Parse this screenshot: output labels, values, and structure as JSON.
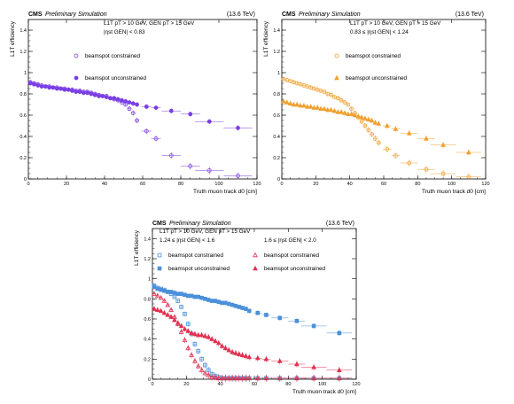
{
  "chart_data": [
    {
      "type": "scatter",
      "cms_label": "CMS",
      "header_italic": "Preliminary Simulation",
      "energy": "(13.6 TeV)",
      "xlabel": "Truth muon track d0 [cm]",
      "ylabel": "L1T efficiency",
      "xlim": [
        0,
        120
      ],
      "ylim": [
        0,
        1.5
      ],
      "x_ticks": [
        "0",
        "20",
        "40",
        "60",
        "80",
        "100",
        "120"
      ],
      "y_ticks": [
        "0",
        "0.2",
        "0.4",
        "0.6",
        "0.8",
        "1",
        "1.2",
        "1.4"
      ],
      "annotations": [
        "L1T pT > 10 GeV, GEN pT > 15 GeV",
        "|ηst GEN| < 0.83"
      ],
      "series": [
        {
          "name": "beamspot constrained",
          "color": "#7b3fe4",
          "marker": "open-circle",
          "x": [
            1,
            3,
            5,
            7,
            9,
            11,
            13,
            15,
            17,
            19,
            21,
            23,
            25,
            27,
            29,
            31,
            33,
            35,
            37,
            39,
            41,
            43,
            45,
            47,
            49,
            51,
            53,
            55,
            57,
            62,
            67,
            75,
            85,
            95,
            110
          ],
          "y": [
            0.91,
            0.9,
            0.89,
            0.88,
            0.87,
            0.87,
            0.86,
            0.86,
            0.85,
            0.85,
            0.84,
            0.84,
            0.83,
            0.83,
            0.82,
            0.82,
            0.81,
            0.8,
            0.79,
            0.78,
            0.78,
            0.76,
            0.75,
            0.74,
            0.72,
            0.7,
            0.66,
            0.62,
            0.55,
            0.45,
            0.38,
            0.22,
            0.12,
            0.08,
            0.03
          ]
        },
        {
          "name": "beamspot unconstrained",
          "color": "#7b3fe4",
          "marker": "filled-circle",
          "x": [
            1,
            3,
            5,
            7,
            9,
            11,
            13,
            15,
            17,
            19,
            21,
            23,
            25,
            27,
            29,
            31,
            33,
            35,
            37,
            39,
            41,
            43,
            45,
            47,
            49,
            51,
            53,
            55,
            57,
            62,
            67,
            75,
            85,
            95,
            110
          ],
          "y": [
            0.9,
            0.89,
            0.88,
            0.87,
            0.87,
            0.86,
            0.86,
            0.85,
            0.85,
            0.84,
            0.84,
            0.83,
            0.82,
            0.82,
            0.81,
            0.81,
            0.8,
            0.79,
            0.78,
            0.78,
            0.77,
            0.76,
            0.76,
            0.75,
            0.74,
            0.73,
            0.72,
            0.71,
            0.7,
            0.68,
            0.67,
            0.64,
            0.61,
            0.54,
            0.48
          ]
        }
      ]
    },
    {
      "type": "scatter",
      "cms_label": "CMS",
      "header_italic": "Preliminary Simulation",
      "energy": "(13.6 TeV)",
      "xlabel": "Truth muon track d0 [cm]",
      "ylabel": "L1T efficiency",
      "xlim": [
        0,
        120
      ],
      "ylim": [
        0,
        1.5
      ],
      "x_ticks": [
        "0",
        "20",
        "40",
        "60",
        "80",
        "100",
        "120"
      ],
      "y_ticks": [
        "0",
        "0.2",
        "0.4",
        "0.6",
        "0.8",
        "1",
        "1.2",
        "1.4"
      ],
      "annotations": [
        "L1T pT > 10 GeV, GEN pT > 15 GeV",
        "0.83 ≤ |ηst GEN| < 1.24"
      ],
      "series": [
        {
          "name": "beamspot constrained",
          "color": "#f0a030",
          "marker": "open-circle",
          "x": [
            1,
            3,
            5,
            7,
            9,
            11,
            13,
            15,
            17,
            19,
            21,
            23,
            25,
            27,
            29,
            31,
            33,
            35,
            37,
            39,
            41,
            43,
            45,
            47,
            49,
            51,
            53,
            55,
            57,
            62,
            67,
            75,
            85,
            95,
            110
          ],
          "y": [
            0.94,
            0.93,
            0.92,
            0.91,
            0.9,
            0.89,
            0.88,
            0.87,
            0.86,
            0.85,
            0.84,
            0.83,
            0.82,
            0.8,
            0.79,
            0.77,
            0.76,
            0.74,
            0.72,
            0.7,
            0.66,
            0.62,
            0.58,
            0.54,
            0.5,
            0.46,
            0.42,
            0.38,
            0.34,
            0.28,
            0.22,
            0.15,
            0.09,
            0.05,
            0.02
          ]
        },
        {
          "name": "beamspot unconstrained",
          "color": "#f0a030",
          "marker": "filled-triangle",
          "x": [
            1,
            3,
            5,
            7,
            9,
            11,
            13,
            15,
            17,
            19,
            21,
            23,
            25,
            27,
            29,
            31,
            33,
            35,
            37,
            39,
            41,
            43,
            45,
            47,
            49,
            51,
            53,
            55,
            57,
            62,
            67,
            75,
            85,
            95,
            110
          ],
          "y": [
            0.73,
            0.72,
            0.71,
            0.7,
            0.7,
            0.69,
            0.69,
            0.68,
            0.68,
            0.67,
            0.67,
            0.66,
            0.66,
            0.65,
            0.65,
            0.64,
            0.63,
            0.63,
            0.62,
            0.61,
            0.61,
            0.6,
            0.59,
            0.58,
            0.57,
            0.56,
            0.55,
            0.53,
            0.52,
            0.5,
            0.47,
            0.43,
            0.38,
            0.32,
            0.25
          ]
        }
      ]
    },
    {
      "type": "scatter",
      "cms_label": "CMS",
      "header_italic": "Preliminary Simulation",
      "energy": "(13.6 TeV)",
      "xlabel": "Truth muon track d0 [cm]",
      "ylabel": "L1T efficiency",
      "xlim": [
        0,
        120
      ],
      "ylim": [
        0,
        1.5
      ],
      "x_ticks": [
        "0",
        "20",
        "40",
        "60",
        "80",
        "100",
        "120"
      ],
      "y_ticks": [
        "0",
        "0.2",
        "0.4",
        "0.6",
        "0.8",
        "1",
        "1.2",
        "1.4"
      ],
      "annotations": [
        "L1T pT > 10 GeV, GEN pT > 15 GeV",
        "1.24 ≤ |ηst GEN| < 1.6",
        "1.6 ≤ |ηst GEN| < 2.0"
      ],
      "series": [
        {
          "name": "beamspot constrained",
          "color": "#4a90d9",
          "marker": "open-square",
          "x": [
            1,
            3,
            5,
            7,
            9,
            11,
            13,
            15,
            17,
            19,
            21,
            23,
            25,
            27,
            29,
            31,
            33,
            35,
            37,
            39,
            41,
            43,
            45,
            47,
            49,
            51,
            53,
            55,
            57,
            62,
            67,
            75,
            85,
            95,
            110
          ],
          "y": [
            0.93,
            0.91,
            0.9,
            0.89,
            0.87,
            0.85,
            0.82,
            0.78,
            0.72,
            0.65,
            0.55,
            0.45,
            0.35,
            0.28,
            0.2,
            0.14,
            0.09,
            0.05,
            0.03,
            0.02,
            0.01,
            0.01,
            0.01,
            0.01,
            0.01,
            0.01,
            0.01,
            0.01,
            0.01,
            0.01,
            0.01,
            0.01,
            0.01,
            0.01,
            0.01
          ]
        },
        {
          "name": "beamspot unconstrained",
          "color": "#4a90d9",
          "marker": "filled-square",
          "x": [
            1,
            3,
            5,
            7,
            9,
            11,
            13,
            15,
            17,
            19,
            21,
            23,
            25,
            27,
            29,
            31,
            33,
            35,
            37,
            39,
            41,
            43,
            45,
            47,
            49,
            51,
            53,
            55,
            57,
            62,
            67,
            75,
            85,
            95,
            110
          ],
          "y": [
            0.92,
            0.9,
            0.89,
            0.88,
            0.87,
            0.87,
            0.86,
            0.85,
            0.85,
            0.84,
            0.83,
            0.83,
            0.82,
            0.82,
            0.81,
            0.8,
            0.79,
            0.78,
            0.78,
            0.77,
            0.76,
            0.76,
            0.75,
            0.74,
            0.73,
            0.72,
            0.71,
            0.7,
            0.68,
            0.66,
            0.64,
            0.61,
            0.58,
            0.53,
            0.46
          ]
        },
        {
          "name": "beamspot constrained",
          "color": "#e03050",
          "marker": "open-triangle",
          "x": [
            1,
            3,
            5,
            7,
            9,
            11,
            13,
            15,
            17,
            19,
            21,
            23,
            25,
            27,
            29,
            31,
            33,
            35,
            37,
            39,
            41,
            43,
            45,
            47,
            49,
            51,
            53,
            55,
            57,
            62,
            67,
            75,
            85,
            95,
            110
          ],
          "y": [
            0.85,
            0.83,
            0.81,
            0.78,
            0.74,
            0.69,
            0.62,
            0.55,
            0.47,
            0.39,
            0.31,
            0.24,
            0.18,
            0.13,
            0.09,
            0.06,
            0.04,
            0.02,
            0.02,
            0.01,
            0.01,
            0.01,
            0.01,
            0.01,
            0.01,
            0.01,
            0.01,
            0.01,
            0.01,
            0.01,
            0.01,
            0.01,
            0.01,
            0.01,
            0.01
          ]
        },
        {
          "name": "beamspot unconstrained",
          "color": "#e03050",
          "marker": "filled-triangle",
          "x": [
            1,
            3,
            5,
            7,
            9,
            11,
            13,
            15,
            17,
            19,
            21,
            23,
            25,
            27,
            29,
            31,
            33,
            35,
            37,
            39,
            41,
            43,
            45,
            47,
            49,
            51,
            53,
            55,
            57,
            62,
            67,
            75,
            85,
            95,
            110
          ],
          "y": [
            0.7,
            0.69,
            0.68,
            0.66,
            0.64,
            0.62,
            0.59,
            0.56,
            0.53,
            0.5,
            0.48,
            0.46,
            0.45,
            0.44,
            0.44,
            0.43,
            0.42,
            0.4,
            0.38,
            0.36,
            0.33,
            0.31,
            0.29,
            0.27,
            0.26,
            0.25,
            0.24,
            0.23,
            0.22,
            0.21,
            0.2,
            0.18,
            0.15,
            0.12,
            0.09
          ]
        }
      ]
    }
  ]
}
